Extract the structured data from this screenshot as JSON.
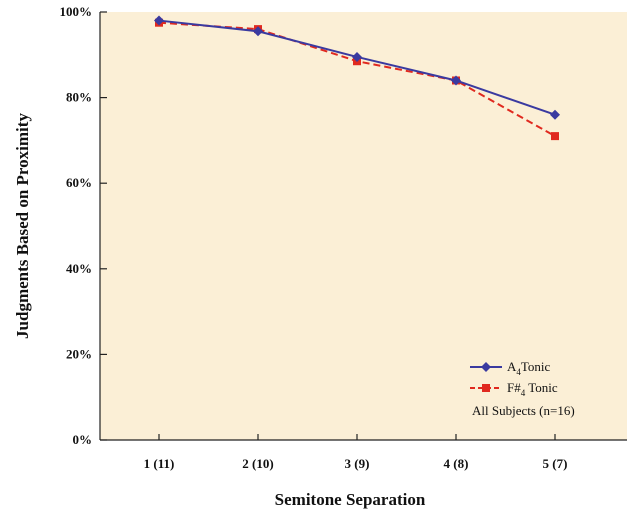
{
  "colors": {
    "plot_background": "#fbefd6",
    "series_a": "#3a3aa0",
    "series_b": "#e0291f",
    "axis": "#222222"
  },
  "chart_data": {
    "type": "line",
    "xlabel": "Semitone Separation",
    "ylabel": "Judgments Based on Proximity",
    "categories": [
      "1 (11)",
      "2 (10)",
      "3 (9)",
      "4 (8)",
      "5 (7)"
    ],
    "yticks": [
      "0%",
      "20%",
      "40%",
      "60%",
      "80%",
      "100%"
    ],
    "ylim": [
      0,
      100
    ],
    "grid": false,
    "legend_position": "bottom-right",
    "series": [
      {
        "key": "a",
        "name_main": "A",
        "name_sub": "4",
        "name_rest": "Tonic",
        "color": "#3a3aa0",
        "line_style": "solid",
        "marker": "diamond",
        "values": [
          98,
          95.5,
          89.5,
          84,
          76
        ]
      },
      {
        "key": "b",
        "name_main": "F#",
        "name_sub": "4",
        "name_rest": " Tonic",
        "color": "#e0291f",
        "line_style": "dashed",
        "marker": "square",
        "values": [
          97.5,
          96,
          88.5,
          84,
          71
        ]
      }
    ],
    "annotation": "All Subjects (n=16)"
  }
}
